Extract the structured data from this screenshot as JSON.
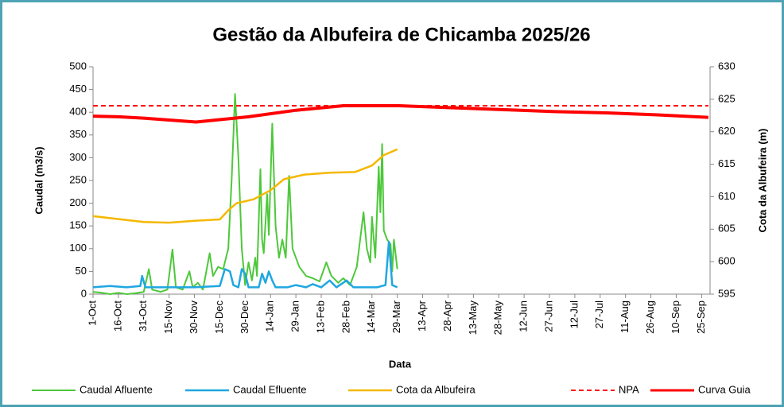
{
  "chart_data": {
    "type": "line",
    "title": "Gestão da Albufeira de Chicamba 2025/26",
    "x_label": "Data",
    "y_label": "Caudal (m3/s)",
    "y2_label": "Cota da Albufeira (m)",
    "xlim": [
      0,
      365
    ],
    "xticks": [
      {
        "value": 0,
        "label": "1-Oct"
      },
      {
        "value": 15,
        "label": "16-Oct"
      },
      {
        "value": 30,
        "label": "31-Oct"
      },
      {
        "value": 45,
        "label": "15-Nov"
      },
      {
        "value": 60,
        "label": "30-Nov"
      },
      {
        "value": 75,
        "label": "15-Dec"
      },
      {
        "value": 90,
        "label": "30-Dec"
      },
      {
        "value": 105,
        "label": "14-Jan"
      },
      {
        "value": 120,
        "label": "29-Jan"
      },
      {
        "value": 135,
        "label": "13-Feb"
      },
      {
        "value": 150,
        "label": "28-Feb"
      },
      {
        "value": 165,
        "label": "14-Mar"
      },
      {
        "value": 180,
        "label": "29-Mar"
      },
      {
        "value": 195,
        "label": "13-Apr"
      },
      {
        "value": 210,
        "label": "28-Apr"
      },
      {
        "value": 225,
        "label": "13-May"
      },
      {
        "value": 240,
        "label": "28-May"
      },
      {
        "value": 255,
        "label": "12-Jun"
      },
      {
        "value": 270,
        "label": "27-Jun"
      },
      {
        "value": 285,
        "label": "12-Jul"
      },
      {
        "value": 300,
        "label": "27-Jul"
      },
      {
        "value": 315,
        "label": "11-Aug"
      },
      {
        "value": 330,
        "label": "26-Aug"
      },
      {
        "value": 345,
        "label": "10-Sep"
      },
      {
        "value": 360,
        "label": "25-Sep"
      }
    ],
    "ylim": [
      0,
      500
    ],
    "yticks": [
      0,
      50,
      100,
      150,
      200,
      250,
      300,
      350,
      400,
      450,
      500
    ],
    "y2lim": [
      595,
      630
    ],
    "y2ticks": [
      595,
      600,
      605,
      610,
      615,
      620,
      625,
      630
    ],
    "series": [
      {
        "name": "Caudal Afluente",
        "color": "#4dc83a",
        "dash": false,
        "width": 2,
        "axis": "y",
        "x": [
          0,
          5,
          10,
          15,
          20,
          25,
          30,
          33,
          35,
          40,
          44,
          47,
          49,
          53,
          57,
          59,
          62,
          65,
          69,
          71,
          74,
          77,
          80,
          82,
          84,
          86,
          88,
          90,
          92,
          94,
          96,
          97,
          99,
          100,
          101,
          103,
          104,
          106,
          108,
          110,
          112,
          114,
          116,
          118,
          122,
          126,
          130,
          134,
          138,
          141,
          145,
          148,
          152,
          156,
          160,
          162,
          164,
          165,
          167,
          169,
          170,
          171,
          172,
          174,
          176,
          177,
          178,
          180
        ],
        "values": [
          5,
          3,
          0,
          3,
          0,
          2,
          5,
          55,
          10,
          5,
          10,
          98,
          15,
          10,
          50,
          15,
          25,
          10,
          90,
          40,
          60,
          55,
          100,
          250,
          440,
          300,
          100,
          20,
          70,
          30,
          80,
          40,
          275,
          120,
          90,
          220,
          130,
          375,
          150,
          80,
          120,
          80,
          260,
          100,
          60,
          40,
          35,
          28,
          70,
          40,
          25,
          35,
          20,
          60,
          180,
          100,
          70,
          170,
          80,
          280,
          180,
          330,
          140,
          120,
          110,
          50,
          120,
          55
        ]
      },
      {
        "name": "Caudal Efluente",
        "color": "#1fa7e0",
        "dash": false,
        "width": 2.5,
        "axis": "y",
        "x": [
          0,
          10,
          20,
          28,
          29,
          31,
          45,
          60,
          75,
          78,
          81,
          83,
          86,
          88,
          90,
          92,
          98,
          100,
          102,
          104,
          106,
          108,
          115,
          120,
          126,
          130,
          135,
          140,
          144,
          150,
          154,
          160,
          168,
          173,
          175,
          177,
          180
        ],
        "values": [
          15,
          18,
          15,
          18,
          40,
          15,
          15,
          15,
          18,
          55,
          50,
          20,
          15,
          55,
          45,
          15,
          15,
          45,
          25,
          50,
          30,
          15,
          15,
          20,
          15,
          22,
          15,
          30,
          15,
          30,
          15,
          15,
          15,
          20,
          115,
          20,
          15
        ]
      },
      {
        "name": "Cota da Albufeira",
        "color": "#f5b800",
        "dash": false,
        "width": 2.5,
        "axis": "y2",
        "x": [
          0,
          30,
          45,
          60,
          75,
          80,
          85,
          95,
          105,
          113,
          125,
          140,
          155,
          165,
          172,
          180
        ],
        "values": [
          607.0,
          606.1,
          606.0,
          606.3,
          606.5,
          607.9,
          609.0,
          609.6,
          611.0,
          612.7,
          613.4,
          613.7,
          613.8,
          614.8,
          616.4,
          617.3
        ]
      },
      {
        "name": "NPA",
        "color": "#ff0000",
        "dash": true,
        "width": 2,
        "axis": "y2",
        "x": [
          0,
          364
        ],
        "values": [
          624,
          624
        ]
      },
      {
        "name": "Curva Guia",
        "color": "#ff0000",
        "dash": false,
        "width": 4,
        "axis": "y2",
        "x": [
          0,
          15,
          30,
          61,
          92,
          120,
          148,
          181,
          212,
          242,
          273,
          304,
          334,
          364
        ],
        "values": [
          622.4,
          622.3,
          622.1,
          621.5,
          622.3,
          623.3,
          624.0,
          624.0,
          623.7,
          623.4,
          623.1,
          622.9,
          622.6,
          622.2
        ]
      }
    ]
  }
}
